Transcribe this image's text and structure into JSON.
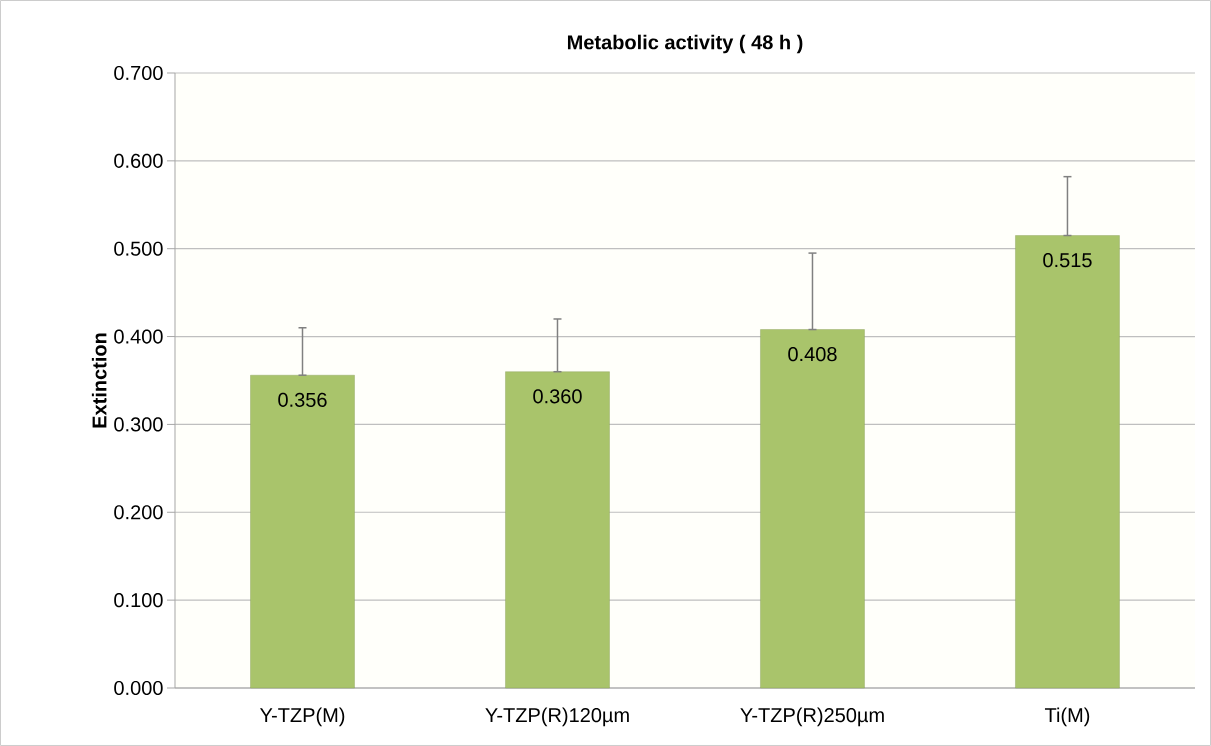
{
  "chart_data": {
    "type": "bar",
    "title": "Metabolic activity ( 48 h )",
    "ylabel": "Extinction",
    "categories": [
      "Y-TZP(M)",
      "Y-TZP(R)120µm",
      "Y-TZP(R)250µm",
      "Ti(M)"
    ],
    "values": [
      0.356,
      0.36,
      0.408,
      0.515
    ],
    "value_labels": [
      "0.356",
      "0.360",
      "0.408",
      "0.515"
    ],
    "errors": [
      [
        0.356,
        0.41
      ],
      [
        0.36,
        0.42
      ],
      [
        0.408,
        0.495
      ],
      [
        0.515,
        0.582
      ]
    ],
    "color": "#a9c46b",
    "ylim": [
      0,
      0.7
    ],
    "yticks": [
      {
        "value": 0,
        "label": "0.000"
      },
      {
        "value": 0.1,
        "label": "0.100"
      },
      {
        "value": 0.2,
        "label": "0.200"
      },
      {
        "value": 0.3,
        "label": "0.300"
      },
      {
        "value": 0.4,
        "label": "0.400"
      },
      {
        "value": 0.5,
        "label": "0.500"
      },
      {
        "value": 0.6,
        "label": "0.600"
      },
      {
        "value": 0.7,
        "label": "0.700"
      }
    ],
    "grid": "y"
  }
}
